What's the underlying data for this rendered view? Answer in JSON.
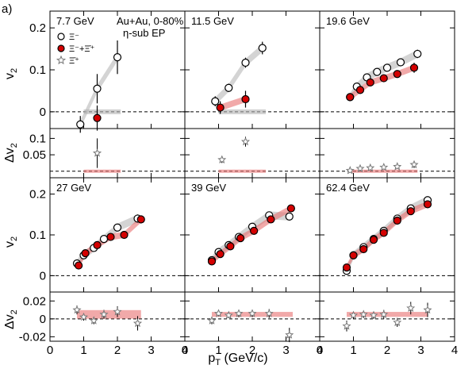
{
  "figure_label": "a)",
  "x_axis_title": "p_T (GeV/c)",
  "x_axis_title_main": "p",
  "x_axis_title_sub": "T",
  "x_axis_title_unit": " (GeV/c)",
  "y_axis_top_title": "v",
  "y_axis_top_sub": "2",
  "y_axis_bottom_title": "Δv",
  "y_axis_bottom_sub": "2",
  "legend": {
    "system": "Au+Au,  0-80%",
    "method": "η-sub EP",
    "entries": [
      "Ξ⁻+Ξ̄⁺",
      "Ξ⁻",
      "Ξ̄⁺"
    ]
  },
  "colors": {
    "particle": "#ffffff",
    "antiparticle": "#d40000",
    "diff": "#bbbbbb",
    "band_gray": "#b0b0b0",
    "band_red": "#e87070"
  },
  "x_ticks": [
    "0",
    "1",
    "2",
    "3",
    "4"
  ],
  "top_y_ticks": [
    "0",
    "0.1",
    "0.2"
  ],
  "bottom_y_ticks_row1": [
    "0.05",
    "0.1"
  ],
  "bottom_y_ticks_row2": [
    "-0.02",
    "0",
    "0.02"
  ],
  "chart_data": [
    {
      "type": "scatter",
      "energy": "7.7 GeV",
      "xlim": [
        0,
        4
      ],
      "ylim": [
        -0.04,
        0.24
      ],
      "dlim": [
        -0.02,
        0.13
      ],
      "series": [
        {
          "name": "Ξ⁻",
          "x": [
            0.9,
            1.4,
            2.0
          ],
          "y": [
            -0.03,
            0.055,
            0.13
          ],
          "err": [
            0.02,
            0.035,
            0.04
          ]
        },
        {
          "name": "Ξ̄⁺",
          "x": [
            1.4
          ],
          "y": [
            -0.015
          ],
          "err": [
            0.03
          ]
        }
      ],
      "diff": {
        "x": [
          1.4
        ],
        "y": [
          0.055
        ],
        "err": [
          0.045
        ]
      },
      "band": {
        "x0": 1.0,
        "x1": 2.1,
        "y0": 0.0,
        "y1": 0.0
      }
    },
    {
      "type": "scatter",
      "energy": "11.5 GeV",
      "xlim": [
        0,
        4
      ],
      "ylim": [
        -0.04,
        0.24
      ],
      "dlim": [
        -0.02,
        0.13
      ],
      "series": [
        {
          "name": "Ξ⁻",
          "x": [
            0.9,
            1.3,
            1.8,
            2.3
          ],
          "y": [
            0.025,
            0.057,
            0.117,
            0.152
          ],
          "err": [
            0.012,
            0.01,
            0.012,
            0.015
          ]
        },
        {
          "name": "Ξ̄⁺",
          "x": [
            1.05,
            1.8
          ],
          "y": [
            0.01,
            0.03
          ],
          "err": [
            0.015,
            0.02
          ]
        }
      ],
      "diff": {
        "x": [
          1.1,
          1.8
        ],
        "y": [
          0.035,
          0.09
        ],
        "err": [
          0.01,
          0.015
        ]
      },
      "band": {
        "x0": 1.0,
        "x1": 2.4,
        "y0": 0.0,
        "y1": 0.0
      }
    },
    {
      "type": "scatter",
      "energy": "19.6 GeV",
      "xlim": [
        0,
        4
      ],
      "ylim": [
        -0.04,
        0.24
      ],
      "dlim": [
        -0.02,
        0.13
      ],
      "series": [
        {
          "name": "Ξ⁻",
          "x": [
            0.9,
            1.1,
            1.4,
            1.7,
            2.0,
            2.4,
            2.9
          ],
          "y": [
            0.035,
            0.06,
            0.082,
            0.095,
            0.105,
            0.118,
            0.138
          ],
          "err": [
            0.006,
            0.006,
            0.006,
            0.006,
            0.007,
            0.008,
            0.01
          ]
        },
        {
          "name": "Ξ̄⁺",
          "x": [
            0.9,
            1.2,
            1.5,
            1.9,
            2.3,
            2.8
          ],
          "y": [
            0.035,
            0.052,
            0.07,
            0.08,
            0.09,
            0.105
          ],
          "err": [
            0.007,
            0.007,
            0.007,
            0.008,
            0.008,
            0.012
          ]
        }
      ],
      "diff": {
        "x": [
          0.9,
          1.2,
          1.5,
          1.9,
          2.3,
          2.8
        ],
        "y": [
          0.002,
          0.008,
          0.01,
          0.012,
          0.014,
          0.02
        ],
        "err": [
          0.005,
          0.005,
          0.005,
          0.006,
          0.006,
          0.01
        ]
      },
      "band": {
        "x0": 0.9,
        "x1": 2.9,
        "y0": 0.0,
        "y1": 0.0
      }
    },
    {
      "type": "scatter",
      "energy": "27 GeV",
      "xlim": [
        0,
        4
      ],
      "ylim": [
        -0.04,
        0.24
      ],
      "dlim": [
        -0.025,
        0.03
      ],
      "series": [
        {
          "name": "Ξ⁻",
          "x": [
            0.8,
            1.0,
            1.3,
            1.6,
            2.0,
            2.6
          ],
          "y": [
            0.03,
            0.05,
            0.068,
            0.09,
            0.118,
            0.14
          ],
          "err": [
            0.005,
            0.005,
            0.005,
            0.006,
            0.007,
            0.01
          ]
        },
        {
          "name": "Ξ̄⁺",
          "x": [
            0.85,
            1.05,
            1.4,
            1.8,
            2.2,
            2.7
          ],
          "y": [
            0.025,
            0.055,
            0.075,
            0.095,
            0.1,
            0.138
          ],
          "err": [
            0.005,
            0.005,
            0.005,
            0.006,
            0.007,
            0.01
          ]
        }
      ],
      "diff": {
        "x": [
          0.8,
          1.0,
          1.3,
          1.6,
          2.0,
          2.6
        ],
        "y": [
          0.01,
          0.002,
          -0.002,
          0.005,
          0.008,
          -0.005
        ],
        "err": [
          0.005,
          0.004,
          0.004,
          0.005,
          0.006,
          0.008
        ]
      },
      "band": {
        "x0": 0.8,
        "x1": 2.7,
        "y0": 0.002,
        "y1": 0.008
      }
    },
    {
      "type": "scatter",
      "energy": "39 GeV",
      "xlim": [
        0,
        4
      ],
      "ylim": [
        -0.04,
        0.24
      ],
      "dlim": [
        -0.025,
        0.03
      ],
      "series": [
        {
          "name": "Ξ⁻",
          "x": [
            0.8,
            1.0,
            1.3,
            1.6,
            2.0,
            2.5,
            3.1
          ],
          "y": [
            0.038,
            0.058,
            0.075,
            0.095,
            0.12,
            0.148,
            0.145
          ],
          "err": [
            0.003,
            0.003,
            0.004,
            0.004,
            0.005,
            0.006,
            0.008
          ]
        },
        {
          "name": "Ξ̄⁺",
          "x": [
            0.8,
            1.05,
            1.35,
            1.65,
            2.05,
            2.55,
            3.15
          ],
          "y": [
            0.035,
            0.053,
            0.072,
            0.092,
            0.11,
            0.138,
            0.165
          ],
          "err": [
            0.003,
            0.003,
            0.004,
            0.004,
            0.005,
            0.006,
            0.008
          ]
        }
      ],
      "diff": {
        "x": [
          0.8,
          1.0,
          1.3,
          1.6,
          2.0,
          2.5,
          3.1
        ],
        "y": [
          -0.002,
          0.006,
          0.004,
          0.006,
          0.006,
          0.006,
          -0.018
        ],
        "err": [
          0.004,
          0.003,
          0.003,
          0.004,
          0.004,
          0.005,
          0.008
        ]
      },
      "band": {
        "x0": 0.8,
        "x1": 3.2,
        "y0": 0.004,
        "y1": 0.006
      }
    },
    {
      "type": "scatter",
      "energy": "62.4 GeV",
      "xlim": [
        0,
        4
      ],
      "ylim": [
        -0.04,
        0.24
      ],
      "dlim": [
        -0.025,
        0.03
      ],
      "series": [
        {
          "name": "Ξ⁻",
          "x": [
            0.8,
            1.0,
            1.3,
            1.6,
            1.9,
            2.3,
            2.7,
            3.2
          ],
          "y": [
            0.012,
            0.05,
            0.07,
            0.09,
            0.11,
            0.14,
            0.165,
            0.185
          ],
          "err": [
            0.005,
            0.004,
            0.004,
            0.004,
            0.005,
            0.006,
            0.007,
            0.008
          ]
        },
        {
          "name": "Ξ̄⁺",
          "x": [
            0.8,
            1.0,
            1.3,
            1.6,
            1.9,
            2.3,
            2.7,
            3.2
          ],
          "y": [
            0.02,
            0.05,
            0.065,
            0.088,
            0.105,
            0.135,
            0.158,
            0.175
          ],
          "err": [
            0.005,
            0.004,
            0.004,
            0.004,
            0.005,
            0.006,
            0.007,
            0.008
          ]
        }
      ],
      "diff": {
        "x": [
          0.8,
          1.0,
          1.3,
          1.6,
          1.9,
          2.3,
          2.7,
          3.2
        ],
        "y": [
          -0.008,
          0.004,
          0.005,
          0.004,
          0.005,
          -0.004,
          0.012,
          0.01
        ],
        "err": [
          0.006,
          0.004,
          0.004,
          0.004,
          0.005,
          0.005,
          0.007,
          0.008
        ]
      },
      "band": {
        "x0": 0.8,
        "x1": 3.2,
        "y0": 0.004,
        "y1": 0.006
      }
    }
  ]
}
